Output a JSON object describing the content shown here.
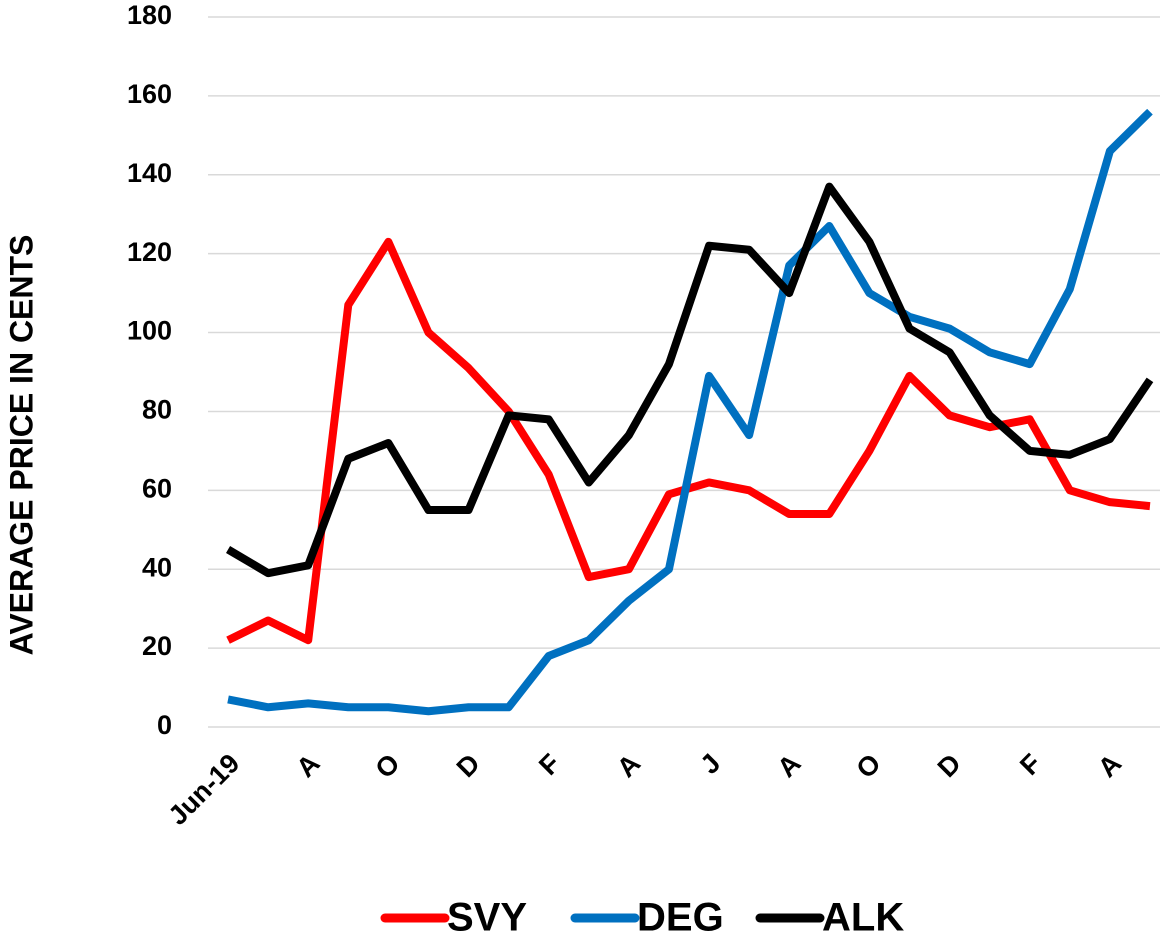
{
  "chart_data": {
    "type": "line",
    "y_label": "AVERAGE PRICE IN CENTS",
    "categories": [
      "Jun-19",
      null,
      "A",
      null,
      "O",
      null,
      "D",
      null,
      "F",
      null,
      "A",
      null,
      "J",
      null,
      "A",
      null,
      "O",
      null,
      "D",
      null,
      "F",
      null,
      "A",
      null
    ],
    "series": [
      {
        "name": "SVY",
        "color": "#ff0000",
        "values": [
          22,
          27,
          22,
          107,
          123,
          100,
          91,
          80,
          64,
          38,
          40,
          59,
          62,
          60,
          54,
          54,
          70,
          89,
          79,
          76,
          78,
          60,
          57,
          56
        ]
      },
      {
        "name": "DEG",
        "color": "#0070c0",
        "values": [
          7,
          5,
          6,
          5,
          5,
          4,
          5,
          5,
          18,
          22,
          32,
          40,
          89,
          74,
          117,
          127,
          110,
          104,
          101,
          95,
          92,
          111,
          146,
          156
        ]
      },
      {
        "name": "ALK",
        "color": "#000000",
        "values": [
          45,
          39,
          41,
          68,
          72,
          55,
          55,
          79,
          78,
          62,
          74,
          92,
          122,
          121,
          110,
          137,
          123,
          101,
          95,
          79,
          70,
          69,
          73,
          88
        ]
      }
    ],
    "ylim": [
      0,
      180
    ],
    "yticks": [
      0,
      20,
      40,
      60,
      80,
      100,
      120,
      140,
      160,
      180
    ],
    "grid": true,
    "legend": "bottom"
  }
}
